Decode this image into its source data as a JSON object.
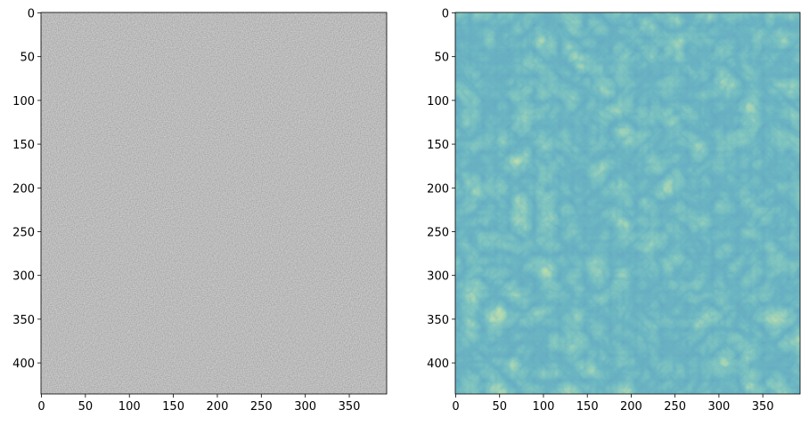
{
  "chart_data": [
    {
      "type": "image",
      "cmap": "gray",
      "xlim": [
        -0.5,
        392.5
      ],
      "ylim": [
        435.5,
        -0.5
      ],
      "xticks": [
        0,
        50,
        100,
        150,
        200,
        250,
        300,
        350
      ],
      "yticks": [
        0,
        50,
        100,
        150,
        200,
        250,
        300,
        350,
        400
      ]
    },
    {
      "type": "image",
      "cmap": "viridis",
      "xlim": [
        -0.5,
        392.5
      ],
      "ylim": [
        435.5,
        -0.5
      ],
      "xticks": [
        0,
        50,
        100,
        150,
        200,
        250,
        300,
        350
      ],
      "yticks": [
        0,
        50,
        100,
        150,
        200,
        250,
        300,
        350,
        400
      ]
    }
  ]
}
